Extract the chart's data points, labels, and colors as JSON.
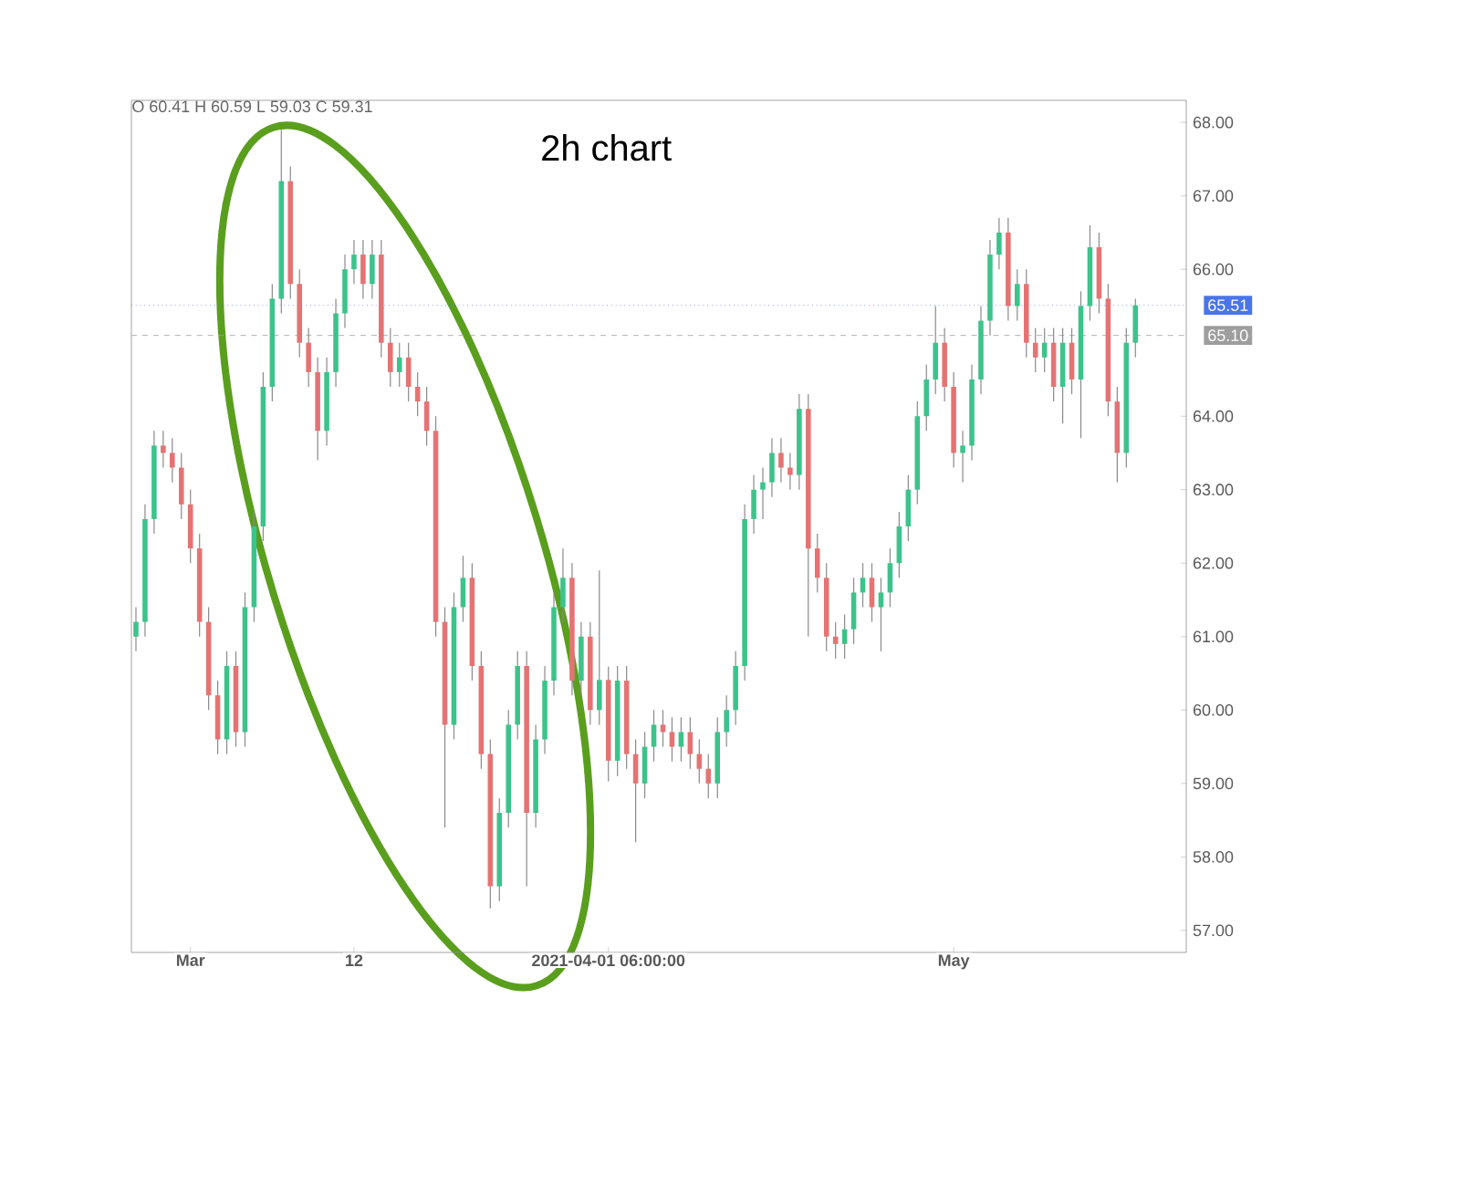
{
  "chart_data": {
    "type": "candlestick",
    "title": "2h chart",
    "annotations": [
      "O 60.41 H 60.59 L 59.03 C 59.31"
    ],
    "categories": [
      null,
      null,
      null,
      null,
      null,
      null,
      "Mar",
      null,
      null,
      null,
      null,
      null,
      null,
      null,
      null,
      null,
      null,
      null,
      null,
      null,
      null,
      null,
      null,
      null,
      "12",
      null,
      null,
      null,
      null,
      null,
      null,
      null,
      null,
      null,
      null,
      null,
      null,
      null,
      null,
      null,
      null,
      null,
      null,
      null,
      null,
      null,
      null,
      null,
      null,
      null,
      null,
      null,
      "2021-04-01 06:00:00",
      null,
      null,
      null,
      null,
      null,
      null,
      null,
      null,
      null,
      null,
      null,
      null,
      null,
      null,
      null,
      null,
      null,
      null,
      null,
      null,
      null,
      null,
      null,
      null,
      null,
      null,
      null,
      null,
      null,
      null,
      null,
      null,
      null,
      null,
      null,
      null,
      null,
      "May",
      null,
      null,
      null,
      null,
      null,
      null,
      null,
      null,
      null,
      null,
      null,
      null,
      null,
      null,
      null,
      null,
      null,
      null,
      null,
      null
    ],
    "ohlc": [
      [
        61.0,
        61.4,
        60.8,
        61.2
      ],
      [
        61.2,
        62.8,
        61.0,
        62.6
      ],
      [
        62.6,
        63.8,
        62.4,
        63.6
      ],
      [
        63.6,
        63.8,
        63.3,
        63.5
      ],
      [
        63.5,
        63.7,
        63.1,
        63.3
      ],
      [
        63.3,
        63.5,
        62.6,
        62.8
      ],
      [
        62.8,
        63.0,
        62.0,
        62.2
      ],
      [
        62.2,
        62.4,
        61.0,
        61.2
      ],
      [
        61.2,
        61.4,
        60.0,
        60.2
      ],
      [
        60.2,
        60.4,
        59.4,
        59.6
      ],
      [
        59.6,
        60.8,
        59.4,
        60.6
      ],
      [
        60.6,
        60.8,
        59.5,
        59.7
      ],
      [
        59.7,
        61.6,
        59.5,
        61.4
      ],
      [
        61.4,
        62.7,
        61.2,
        62.5
      ],
      [
        62.5,
        64.6,
        62.3,
        64.4
      ],
      [
        64.4,
        65.8,
        64.2,
        65.6
      ],
      [
        65.6,
        67.9,
        65.4,
        67.2
      ],
      [
        67.2,
        67.4,
        65.6,
        65.8
      ],
      [
        65.8,
        66.0,
        64.8,
        65.0
      ],
      [
        65.0,
        65.2,
        64.4,
        64.6
      ],
      [
        64.6,
        64.8,
        63.4,
        63.8
      ],
      [
        63.8,
        64.8,
        63.6,
        64.6
      ],
      [
        64.6,
        65.6,
        64.4,
        65.4
      ],
      [
        65.4,
        66.2,
        65.2,
        66.0
      ],
      [
        66.0,
        66.4,
        65.8,
        66.2
      ],
      [
        66.2,
        66.4,
        65.6,
        65.8
      ],
      [
        65.8,
        66.4,
        65.6,
        66.2
      ],
      [
        66.2,
        66.4,
        64.8,
        65.0
      ],
      [
        65.0,
        65.2,
        64.4,
        64.6
      ],
      [
        64.6,
        65.0,
        64.4,
        64.8
      ],
      [
        64.8,
        65.0,
        64.2,
        64.4
      ],
      [
        64.4,
        64.6,
        64.0,
        64.2
      ],
      [
        64.2,
        64.4,
        63.6,
        63.8
      ],
      [
        63.8,
        64.0,
        61.0,
        61.2
      ],
      [
        61.2,
        61.4,
        58.4,
        59.8
      ],
      [
        59.8,
        61.6,
        59.6,
        61.4
      ],
      [
        61.4,
        62.1,
        61.2,
        61.8
      ],
      [
        61.8,
        62.0,
        60.4,
        60.6
      ],
      [
        60.6,
        60.8,
        59.2,
        59.4
      ],
      [
        59.4,
        59.6,
        57.3,
        57.6
      ],
      [
        57.6,
        58.8,
        57.4,
        58.6
      ],
      [
        58.6,
        60.0,
        58.4,
        59.8
      ],
      [
        59.8,
        60.8,
        59.6,
        60.6
      ],
      [
        60.6,
        60.8,
        57.6,
        58.6
      ],
      [
        58.6,
        59.8,
        58.4,
        59.6
      ],
      [
        59.6,
        60.6,
        59.4,
        60.4
      ],
      [
        60.4,
        61.6,
        60.2,
        61.4
      ],
      [
        61.4,
        62.2,
        61.2,
        61.8
      ],
      [
        61.8,
        62.0,
        60.2,
        60.4
      ],
      [
        60.4,
        61.2,
        60.2,
        61.0
      ],
      [
        61.0,
        61.2,
        59.8,
        60.0
      ],
      [
        60.0,
        61.9,
        59.8,
        60.41
      ],
      [
        60.41,
        60.59,
        59.03,
        59.31
      ],
      [
        59.31,
        60.6,
        59.1,
        60.4
      ],
      [
        60.4,
        60.6,
        59.2,
        59.4
      ],
      [
        59.4,
        59.6,
        58.2,
        59.0
      ],
      [
        59.0,
        59.7,
        58.8,
        59.5
      ],
      [
        59.5,
        60.0,
        59.3,
        59.8
      ],
      [
        59.8,
        60.0,
        59.5,
        59.7
      ],
      [
        59.7,
        59.9,
        59.3,
        59.5
      ],
      [
        59.5,
        59.9,
        59.3,
        59.7
      ],
      [
        59.7,
        59.9,
        59.2,
        59.4
      ],
      [
        59.4,
        59.6,
        59.0,
        59.2
      ],
      [
        59.2,
        59.4,
        58.8,
        59.0
      ],
      [
        59.0,
        59.9,
        58.8,
        59.7
      ],
      [
        59.7,
        60.2,
        59.5,
        60.0
      ],
      [
        60.0,
        60.8,
        59.8,
        60.6
      ],
      [
        60.6,
        62.8,
        60.4,
        62.6
      ],
      [
        62.6,
        63.2,
        62.4,
        63.0
      ],
      [
        63.0,
        63.3,
        62.6,
        63.1
      ],
      [
        63.1,
        63.7,
        62.9,
        63.5
      ],
      [
        63.5,
        63.7,
        63.1,
        63.3
      ],
      [
        63.3,
        63.5,
        63.0,
        63.2
      ],
      [
        63.2,
        64.3,
        63.0,
        64.1
      ],
      [
        64.1,
        64.3,
        61.0,
        62.2
      ],
      [
        62.2,
        62.4,
        61.6,
        61.8
      ],
      [
        61.8,
        62.0,
        60.8,
        61.0
      ],
      [
        61.0,
        61.2,
        60.7,
        60.9
      ],
      [
        60.9,
        61.3,
        60.7,
        61.1
      ],
      [
        61.1,
        61.8,
        60.9,
        61.6
      ],
      [
        61.6,
        62.0,
        61.4,
        61.8
      ],
      [
        61.8,
        62.0,
        61.2,
        61.4
      ],
      [
        61.4,
        61.8,
        60.8,
        61.6
      ],
      [
        61.6,
        62.2,
        61.4,
        62.0
      ],
      [
        62.0,
        62.7,
        61.8,
        62.5
      ],
      [
        62.5,
        63.2,
        62.3,
        63.0
      ],
      [
        63.0,
        64.2,
        62.8,
        64.0
      ],
      [
        64.0,
        64.7,
        63.8,
        64.5
      ],
      [
        64.5,
        65.5,
        64.3,
        65.0
      ],
      [
        65.0,
        65.2,
        64.2,
        64.4
      ],
      [
        64.4,
        64.6,
        63.3,
        63.5
      ],
      [
        63.5,
        63.8,
        63.1,
        63.6
      ],
      [
        63.6,
        64.7,
        63.4,
        64.5
      ],
      [
        64.5,
        65.5,
        64.3,
        65.3
      ],
      [
        65.3,
        66.4,
        65.1,
        66.2
      ],
      [
        66.2,
        66.7,
        66.0,
        66.5
      ],
      [
        66.5,
        66.7,
        65.3,
        65.5
      ],
      [
        65.5,
        66.0,
        65.3,
        65.8
      ],
      [
        65.8,
        66.0,
        64.8,
        65.0
      ],
      [
        65.0,
        65.2,
        64.6,
        64.8
      ],
      [
        64.8,
        65.2,
        64.6,
        65.0
      ],
      [
        65.0,
        65.2,
        64.2,
        64.4
      ],
      [
        64.4,
        65.2,
        63.9,
        65.0
      ],
      [
        65.0,
        65.2,
        64.3,
        64.5
      ],
      [
        64.5,
        65.7,
        63.7,
        65.5
      ],
      [
        65.5,
        66.6,
        65.3,
        66.3
      ],
      [
        66.3,
        66.5,
        65.4,
        65.6
      ],
      [
        65.6,
        65.8,
        64.0,
        64.2
      ],
      [
        64.2,
        64.4,
        63.1,
        63.5
      ],
      [
        63.5,
        65.2,
        63.3,
        65.0
      ],
      [
        65.0,
        65.6,
        64.8,
        65.51
      ]
    ],
    "ylim": [
      56.7,
      68.3
    ],
    "yticks": [
      {
        "value": 57,
        "label": "57.00"
      },
      {
        "value": 58,
        "label": "58.00"
      },
      {
        "value": 59,
        "label": "59.00"
      },
      {
        "value": 60,
        "label": "60.00"
      },
      {
        "value": 61,
        "label": "61.00"
      },
      {
        "value": 62,
        "label": "62.00"
      },
      {
        "value": 63,
        "label": "63.00"
      },
      {
        "value": 64,
        "label": "64.00"
      },
      {
        "value": 66,
        "label": "66.00"
      },
      {
        "value": 67,
        "label": "67.00"
      },
      {
        "value": 68,
        "label": "68.00"
      }
    ],
    "ref_lines": [
      {
        "axis": "y",
        "value": 65.51,
        "label": "65.51",
        "color": "#4a74e8",
        "line_style": "dotted"
      },
      {
        "axis": "y",
        "value": 65.1,
        "label": "65.10",
        "color": "#9e9e9e",
        "line_style": "dashed"
      }
    ],
    "grid": false
  }
}
